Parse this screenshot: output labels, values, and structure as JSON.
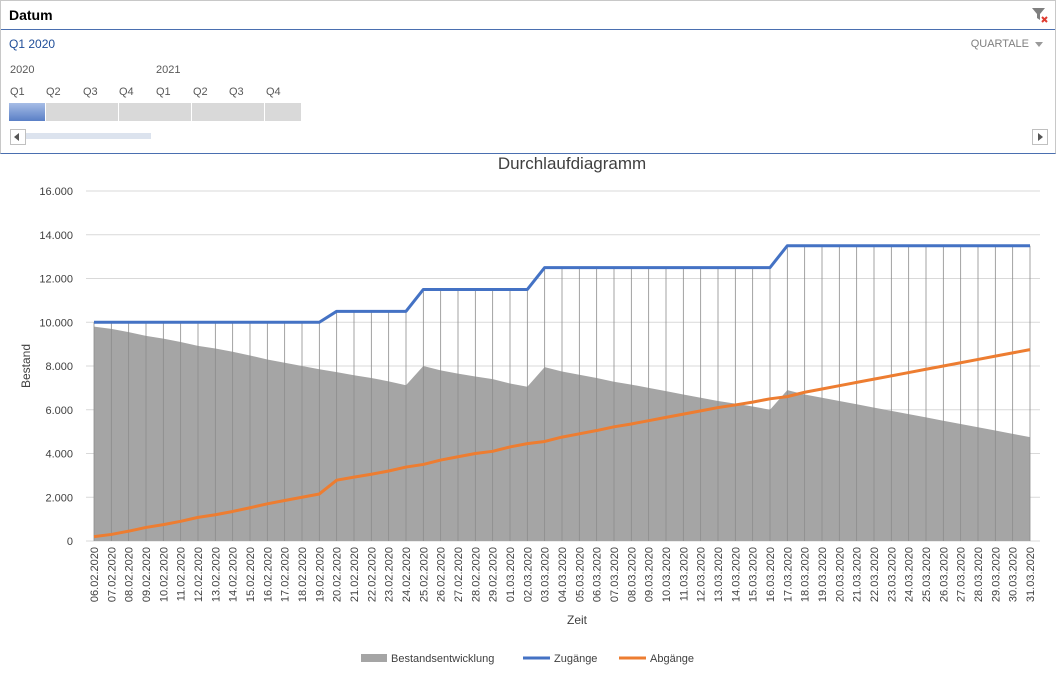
{
  "slicer": {
    "title": "Datum",
    "selected_period": "Q1 2020",
    "level": "QUARTALE",
    "years": [
      "2020",
      "2021"
    ],
    "quarters": [
      "Q1",
      "Q2",
      "Q3",
      "Q4",
      "Q1",
      "Q2",
      "Q3",
      "Q4"
    ],
    "selected_index": 0,
    "accent": "#4a6fb0"
  },
  "chart_data": {
    "type": "area",
    "title": "Durchlaufdiagramm",
    "xlabel": "Zeit",
    "ylabel": "Bestand",
    "ylim": [
      0,
      16000
    ],
    "yticks": [
      "0",
      "2.000",
      "4.000",
      "6.000",
      "8.000",
      "10.000",
      "12.000",
      "14.000",
      "16.000"
    ],
    "grid": true,
    "legend": "bottom",
    "categories": [
      "06.02.2020",
      "07.02.2020",
      "08.02.2020",
      "09.02.2020",
      "10.02.2020",
      "11.02.2020",
      "12.02.2020",
      "13.02.2020",
      "14.02.2020",
      "15.02.2020",
      "16.02.2020",
      "17.02.2020",
      "18.02.2020",
      "19.02.2020",
      "20.02.2020",
      "21.02.2020",
      "22.02.2020",
      "23.02.2020",
      "24.02.2020",
      "25.02.2020",
      "26.02.2020",
      "27.02.2020",
      "28.02.2020",
      "29.02.2020",
      "01.03.2020",
      "02.03.2020",
      "03.03.2020",
      "04.03.2020",
      "05.03.2020",
      "06.03.2020",
      "07.03.2020",
      "08.03.2020",
      "09.03.2020",
      "10.03.2020",
      "11.03.2020",
      "12.03.2020",
      "13.03.2020",
      "14.03.2020",
      "15.03.2020",
      "16.03.2020",
      "17.03.2020",
      "18.03.2020",
      "19.03.2020",
      "20.03.2020",
      "21.03.2020",
      "22.03.2020",
      "23.03.2020",
      "24.03.2020",
      "25.03.2020",
      "26.03.2020",
      "27.03.2020",
      "28.03.2020",
      "29.03.2020",
      "30.03.2020",
      "31.03.2020"
    ],
    "series": [
      {
        "name": "Bestandsentwicklung",
        "type": "area",
        "color": "#a5a5a5",
        "values": [
          9800,
          9700,
          9550,
          9380,
          9250,
          9100,
          8920,
          8800,
          8650,
          8480,
          8300,
          8150,
          8000,
          7850,
          7720,
          7580,
          7450,
          7300,
          7120,
          8000,
          7800,
          7650,
          7520,
          7400,
          7200,
          7050,
          7950,
          7750,
          7600,
          7450,
          7280,
          7150,
          7000,
          6850,
          6700,
          6550,
          6400,
          6280,
          6150,
          6000,
          6900,
          6700,
          6550,
          6400,
          6250,
          6100,
          5950,
          5800,
          5650,
          5500,
          5350,
          5200,
          5050,
          4900,
          4750
        ]
      },
      {
        "name": "Zugänge",
        "type": "line",
        "color": "#4472c4",
        "values": [
          10000,
          10000,
          10000,
          10000,
          10000,
          10000,
          10000,
          10000,
          10000,
          10000,
          10000,
          10000,
          10000,
          10000,
          10500,
          10500,
          10500,
          10500,
          10500,
          11500,
          11500,
          11500,
          11500,
          11500,
          11500,
          11500,
          12500,
          12500,
          12500,
          12500,
          12500,
          12500,
          12500,
          12500,
          12500,
          12500,
          12500,
          12500,
          12500,
          12500,
          13500,
          13500,
          13500,
          13500,
          13500,
          13500,
          13500,
          13500,
          13500,
          13500,
          13500,
          13500,
          13500,
          13500,
          13500
        ]
      },
      {
        "name": "Abgänge",
        "type": "line",
        "color": "#ed7d31",
        "values": [
          200,
          300,
          450,
          620,
          750,
          900,
          1080,
          1200,
          1350,
          1520,
          1700,
          1850,
          2000,
          2150,
          2780,
          2920,
          3050,
          3200,
          3380,
          3500,
          3700,
          3850,
          4000,
          4100,
          4300,
          4450,
          4550,
          4750,
          4900,
          5050,
          5220,
          5350,
          5500,
          5650,
          5800,
          5950,
          6100,
          6220,
          6350,
          6500,
          6600,
          6800,
          6950,
          7100,
          7250,
          7400,
          7550,
          7700,
          7850,
          8000,
          8150,
          8300,
          8450,
          8600,
          8750
        ]
      }
    ]
  }
}
